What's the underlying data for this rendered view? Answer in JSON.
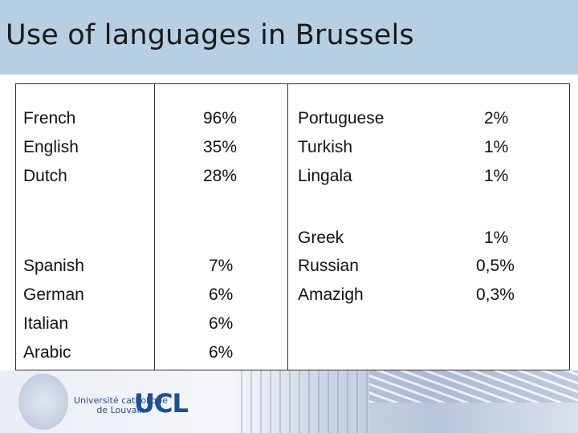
{
  "title": "Use of languages in Brussels",
  "left_table": [
    {
      "language": "French",
      "pct": "96%"
    },
    {
      "language": "English",
      "pct": "35%"
    },
    {
      "language": "Dutch",
      "pct": "28%"
    },
    {
      "language": "Spanish",
      "pct": "7%"
    },
    {
      "language": "German",
      "pct": "6%"
    },
    {
      "language": "Italian",
      "pct": "6%"
    },
    {
      "language": "Arabic",
      "pct": "6%"
    }
  ],
  "right_table": [
    {
      "language": "Portuguese",
      "pct": "2%"
    },
    {
      "language": "Turkish",
      "pct": "1%"
    },
    {
      "language": "Lingala",
      "pct": "1%"
    },
    {
      "language": "Greek",
      "pct": "1%"
    },
    {
      "language": "Russian",
      "pct": "0,5%"
    },
    {
      "language": "Amazigh",
      "pct": "0,3%"
    }
  ],
  "footer": {
    "university_line1": "Université catholique",
    "university_line2": "de Louvain",
    "logo": "UCL"
  }
}
